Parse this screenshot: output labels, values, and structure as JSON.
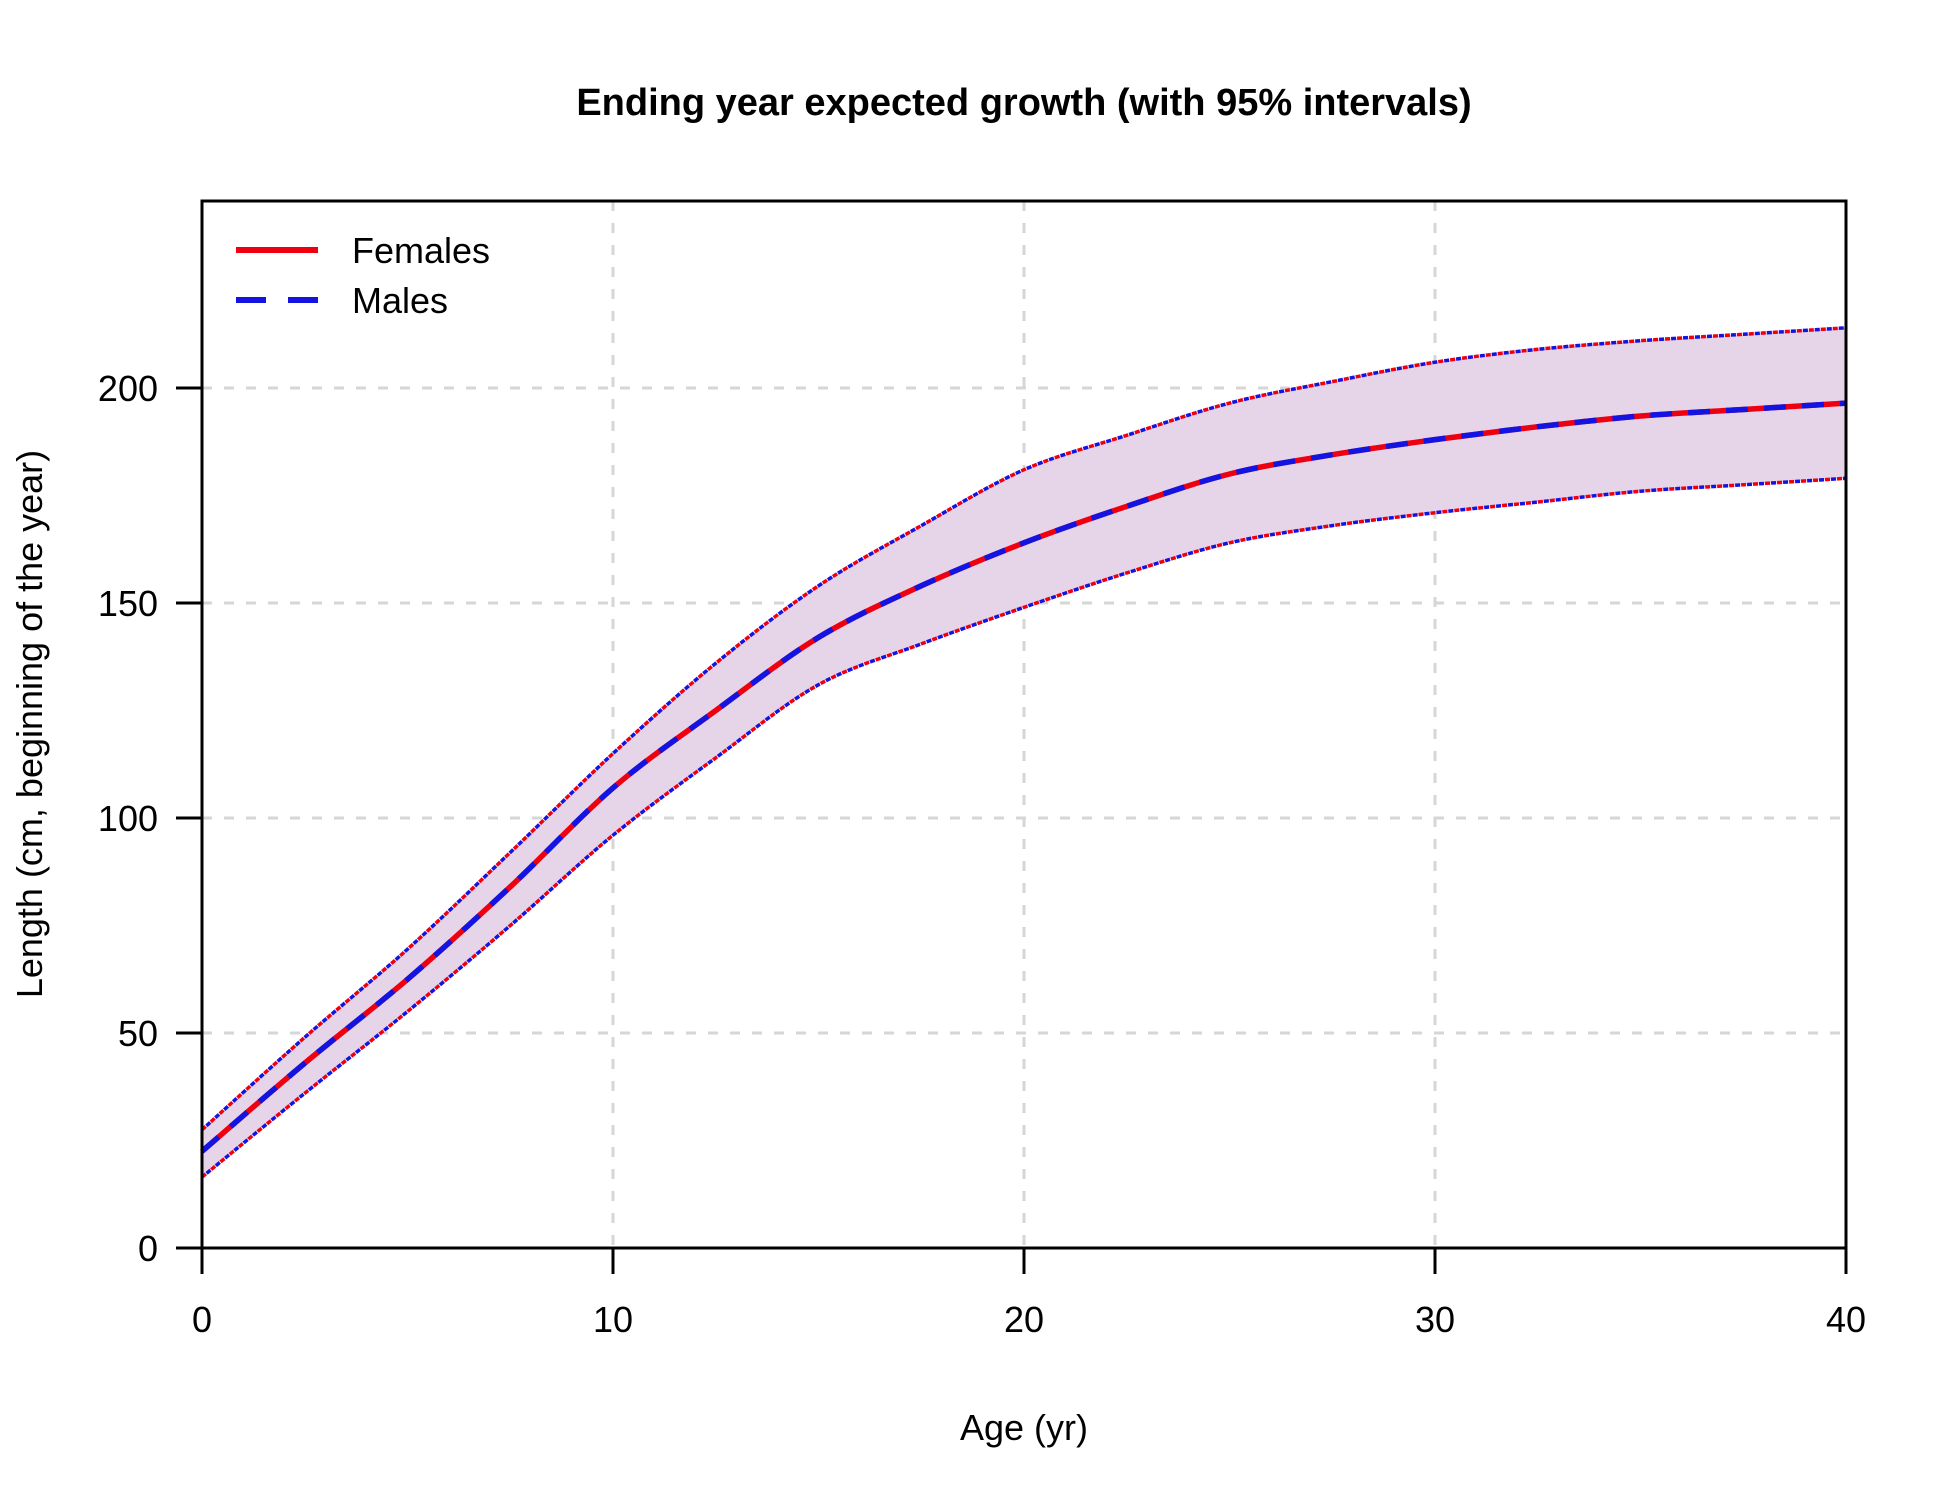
{
  "figure": {
    "title": "Ending year expected growth (with 95% intervals)"
  },
  "chart_data": {
    "type": "line",
    "title": "Ending year expected growth (with 95% intervals)",
    "xlabel": "Age (yr)",
    "ylabel": "Length (cm, beginning of the year)",
    "xlim": [
      0,
      40
    ],
    "ylim": [
      0,
      243.5
    ],
    "x_ticks": [
      0,
      10,
      20,
      30,
      40
    ],
    "y_ticks": [
      0,
      50,
      100,
      150,
      200
    ],
    "grid_x": [
      10,
      20,
      30
    ],
    "grid_y": [
      50,
      100,
      150,
      200
    ],
    "grid": true,
    "legend_position": "top-left",
    "x": [
      0,
      2.5,
      5,
      7.5,
      10,
      12.5,
      15,
      17.5,
      20,
      22.5,
      25,
      27.5,
      30,
      32.5,
      35,
      37.5,
      40
    ],
    "series": [
      {
        "name": "Females",
        "color": "#EE0011",
        "line_style": "solid",
        "values": [
          22.5,
          43,
          62.5,
          84,
          107,
          125,
          142,
          154,
          164,
          172.5,
          180,
          184.5,
          188,
          191,
          193.5,
          195,
          196.5
        ]
      },
      {
        "name": "Males",
        "color": "#1414E0",
        "line_style": "dashed",
        "values": [
          22.5,
          43,
          62.5,
          84,
          107,
          125,
          142,
          154,
          164,
          172.5,
          180,
          184.5,
          188,
          191,
          193.5,
          195,
          196.5
        ]
      }
    ],
    "band": {
      "label": "95% interval",
      "fill": "#E6D5E8",
      "edge_style": "dotted",
      "lower": [
        16.5,
        36,
        55,
        75,
        96,
        114,
        131,
        140.5,
        149,
        157,
        164,
        168,
        171,
        173.5,
        176,
        177.5,
        179
      ],
      "upper": [
        27.5,
        49,
        69.5,
        92,
        115,
        136,
        154,
        168,
        181,
        189,
        196.5,
        201.5,
        206,
        209,
        211,
        212.5,
        214
      ]
    },
    "colors": {
      "grid": "#D6D6D6",
      "axis": "#000000",
      "background": "#FFFFFF"
    }
  }
}
